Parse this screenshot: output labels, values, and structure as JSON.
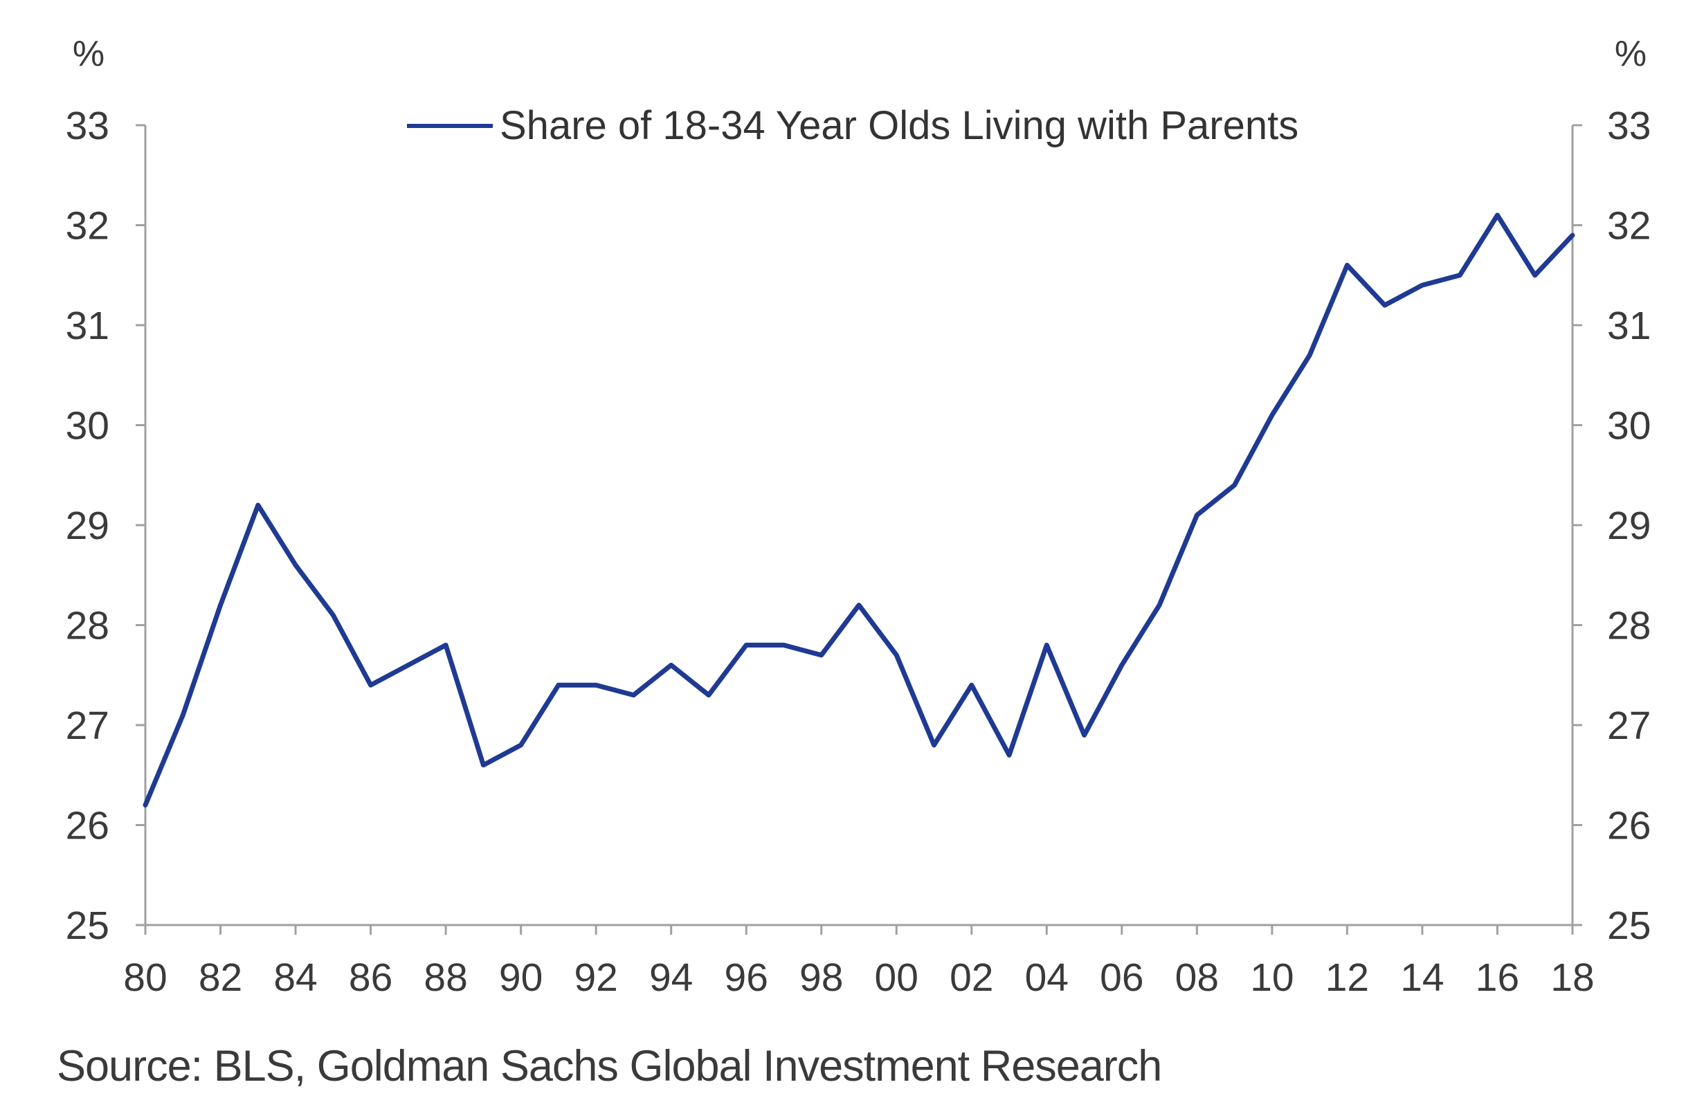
{
  "chart_data": {
    "type": "line",
    "title": "",
    "left_axis_unit": "%",
    "right_axis_unit": "%",
    "ylim": [
      25,
      33
    ],
    "y_ticks": [
      "25",
      "26",
      "27",
      "28",
      "29",
      "30",
      "31",
      "32",
      "33"
    ],
    "x_tick_labels": [
      "80",
      "82",
      "84",
      "86",
      "88",
      "90",
      "92",
      "94",
      "96",
      "98",
      "00",
      "02",
      "04",
      "06",
      "08",
      "10",
      "12",
      "14",
      "16",
      "18"
    ],
    "x_range": [
      1980,
      2018
    ],
    "grid": false,
    "legend_position": "top-center",
    "series": [
      {
        "name": "Share of 18-34 Year Olds Living with Parents",
        "color": "#1f3a93",
        "x": [
          1980,
          1981,
          1982,
          1983,
          1984,
          1985,
          1986,
          1987,
          1988,
          1989,
          1990,
          1991,
          1992,
          1993,
          1994,
          1995,
          1996,
          1997,
          1998,
          1999,
          2000,
          2001,
          2002,
          2003,
          2004,
          2005,
          2006,
          2007,
          2008,
          2009,
          2010,
          2011,
          2012,
          2013,
          2014,
          2015,
          2016,
          2017,
          2018
        ],
        "values": [
          26.2,
          27.1,
          28.2,
          29.2,
          28.6,
          28.1,
          27.4,
          27.6,
          27.8,
          26.6,
          26.8,
          27.4,
          27.4,
          27.3,
          27.6,
          27.3,
          27.8,
          27.8,
          27.7,
          28.2,
          27.7,
          26.8,
          27.4,
          26.7,
          27.8,
          26.9,
          27.6,
          28.2,
          29.1,
          29.4,
          30.1,
          30.7,
          31.6,
          31.2,
          31.4,
          31.5,
          32.1,
          31.5,
          31.9
        ]
      }
    ]
  },
  "source": "Source: BLS, Goldman Sachs Global Investment Research"
}
